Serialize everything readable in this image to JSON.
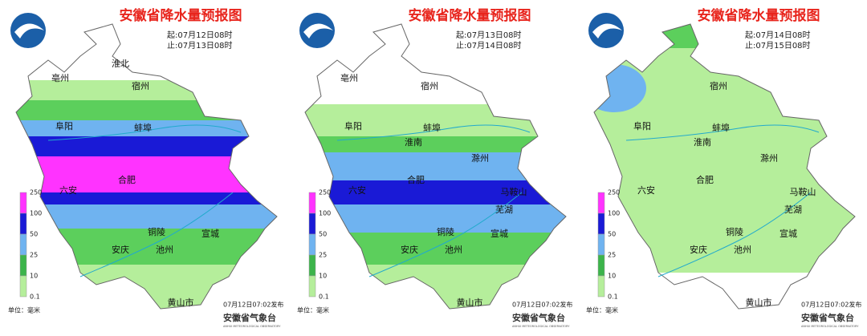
{
  "panels": [
    {
      "title": "安徽省降水量预报图",
      "start": "起:07月12日08时",
      "end": "止:07月13日08时",
      "cities": [
        "亳州",
        "淮北",
        "宿州",
        "阜阳",
        "蚌埠",
        "六安",
        "合肥",
        "铜陵",
        "宣城",
        "安庆",
        "池州",
        "黄山市"
      ]
    },
    {
      "title": "安徽省降水量预报图",
      "start": "起:07月13日08时",
      "end": "止:07月14日08时",
      "cities": [
        "亳州",
        "宿州",
        "阜阳",
        "蚌埠",
        "淮南",
        "滁州",
        "六安",
        "合肥",
        "马鞍山",
        "芜湖",
        "铜陵",
        "宣城",
        "安庆",
        "池州",
        "黄山市"
      ]
    },
    {
      "title": "安徽省降水量预报图",
      "start": "起:07月14日08时",
      "end": "止:07月15日08时",
      "cities": [
        "宿州",
        "阜阳",
        "蚌埠",
        "淮南",
        "滁州",
        "六安",
        "合肥",
        "马鞍山",
        "芜湖",
        "铜陵",
        "宣城",
        "安庆",
        "池州",
        "黄山市"
      ]
    }
  ],
  "legend": {
    "unit": "单位：毫米",
    "levels": [
      {
        "label": 250,
        "color": "#ff33ff"
      },
      {
        "label": 100,
        "color": "#1a1ad6"
      },
      {
        "label": 50,
        "color": "#6fb3f0"
      },
      {
        "label": 25,
        "color": "#3cb44b"
      },
      {
        "label": 10,
        "color": "#b5ee9b"
      },
      {
        "label": 0.1,
        "color": "#ffffff"
      }
    ]
  },
  "publish": "07月12日07:02发布",
  "agency": "安徽省气象台",
  "agency_en": "ANHUI METEOROLOGICAL OBSERVATORY"
}
